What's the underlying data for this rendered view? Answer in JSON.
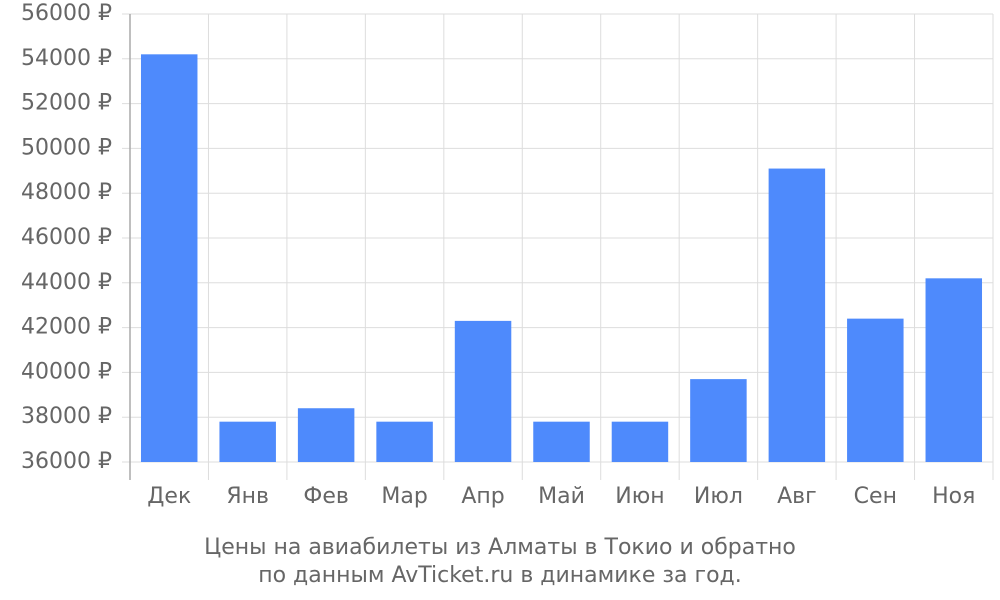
{
  "chart_data": {
    "type": "bar",
    "title": [
      "Цены на авиабилеты из Алматы в Токио и обратно",
      "по данным AvTicket.ru в динамике за год."
    ],
    "categories": [
      "Дек",
      "Янв",
      "Фев",
      "Мар",
      "Апр",
      "Май",
      "Июн",
      "Июл",
      "Авг",
      "Сен",
      "Ноя"
    ],
    "values": [
      54200,
      37800,
      38400,
      37800,
      42300,
      37800,
      37800,
      39700,
      49100,
      42400,
      44200
    ],
    "color": "#4e8afc",
    "ylim": [
      36000,
      56000
    ],
    "yticks": [
      {
        "value": 36000,
        "label": "36000 ₽"
      },
      {
        "value": 38000,
        "label": "38000 ₽"
      },
      {
        "value": 40000,
        "label": "40000 ₽"
      },
      {
        "value": 42000,
        "label": "42000 ₽"
      },
      {
        "value": 44000,
        "label": "44000 ₽"
      },
      {
        "value": 46000,
        "label": "46000 ₽"
      },
      {
        "value": 48000,
        "label": "48000 ₽"
      },
      {
        "value": 50000,
        "label": "50000 ₽"
      },
      {
        "value": 52000,
        "label": "52000 ₽"
      },
      {
        "value": 54000,
        "label": "54000 ₽"
      },
      {
        "value": 56000,
        "label": "56000 ₽"
      }
    ],
    "grid": true
  }
}
